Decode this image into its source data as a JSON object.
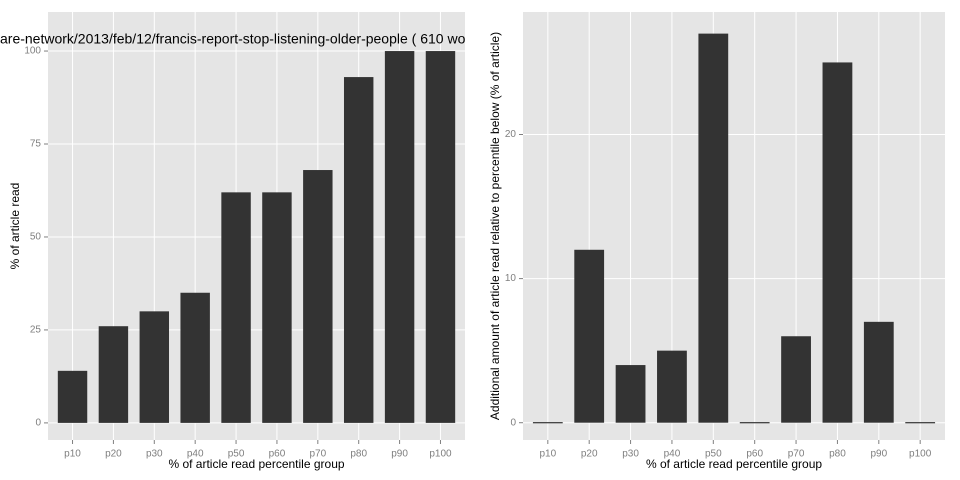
{
  "chart_data": [
    {
      "type": "bar",
      "title": "are-network/2013/feb/12/francis-report-stop-listening-older-people ( 610 wo",
      "x_label": "% of article read percentile group",
      "y_label": "% of article read",
      "categories": [
        "p10",
        "p20",
        "p30",
        "p40",
        "p50",
        "p60",
        "p70",
        "p80",
        "p90",
        "p100"
      ],
      "values": [
        14,
        26,
        30,
        35,
        62,
        62,
        68,
        93,
        100,
        100
      ],
      "color": "#333333",
      "ylim": [
        -4.6,
        110.5
      ],
      "yticks": [
        0,
        25,
        50,
        75,
        100
      ],
      "grid": true
    },
    {
      "type": "bar",
      "x_label": "% of article read percentile group",
      "y_label": "Additional amount of article read relative to percentile below (% of article)",
      "categories": [
        "p10",
        "p20",
        "p30",
        "p40",
        "p50",
        "p60",
        "p70",
        "p80",
        "p90",
        "p100"
      ],
      "values": [
        0,
        12,
        4,
        5,
        27,
        0,
        6,
        25,
        7,
        0
      ],
      "color": "#333333",
      "ylim": [
        -1.2,
        28.5
      ],
      "yticks": [
        0,
        10,
        20
      ],
      "grid": true
    }
  ]
}
